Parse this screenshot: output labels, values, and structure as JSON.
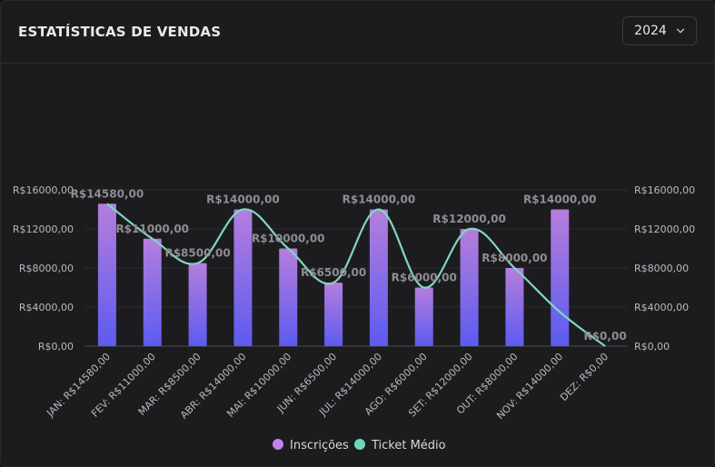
{
  "header": {
    "title": "ESTATÍSTICAS DE VENDAS",
    "year": "2024"
  },
  "colors": {
    "bar_top": "#b57edc",
    "bar_bottom": "#5c5bf0",
    "line": "#7fd6c4",
    "purple_dot": "#c183ea",
    "teal_dot": "#6fd6b8"
  },
  "chart_data": {
    "type": "bar",
    "categories": [
      "JAN: R$14580,00",
      "FEV: R$11000,00",
      "MAR: R$8500,00",
      "ABR: R$14000,00",
      "MAI: R$10000,00",
      "JUN: R$6500,00",
      "JUL: R$14000,00",
      "AGO: R$6000,00",
      "SET: R$12000,00",
      "OUT: R$8000,00",
      "NOV: R$14000,00",
      "DEZ: R$0,00"
    ],
    "series": [
      {
        "name": "Inscrições",
        "type": "bar",
        "values": [
          14580,
          11000,
          8500,
          14000,
          10000,
          6500,
          14000,
          6000,
          12000,
          8000,
          14000,
          0
        ]
      },
      {
        "name": "Ticket Médio",
        "type": "line",
        "values": [
          14580,
          11000,
          8500,
          14000,
          10000,
          6500,
          14000,
          6000,
          12000,
          8000,
          3500,
          0
        ]
      }
    ],
    "data_labels": [
      "R$14580,00",
      "R$11000,00",
      "R$8500,00",
      "R$14000,00",
      "R$10000,00",
      "R$6500,00",
      "R$14000,00",
      "R$6000,00",
      "R$12000,00",
      "R$8000,00",
      "R$14000,00",
      "R$0,00"
    ],
    "y_ticks": [
      0,
      4000,
      8000,
      12000,
      16000
    ],
    "y_tick_labels": [
      "R$0,00",
      "R$4000,00",
      "R$8000,00",
      "R$12000,00",
      "R$16000,00"
    ],
    "ylim": [
      0,
      16000
    ],
    "legend_position": "bottom",
    "grid": true
  }
}
